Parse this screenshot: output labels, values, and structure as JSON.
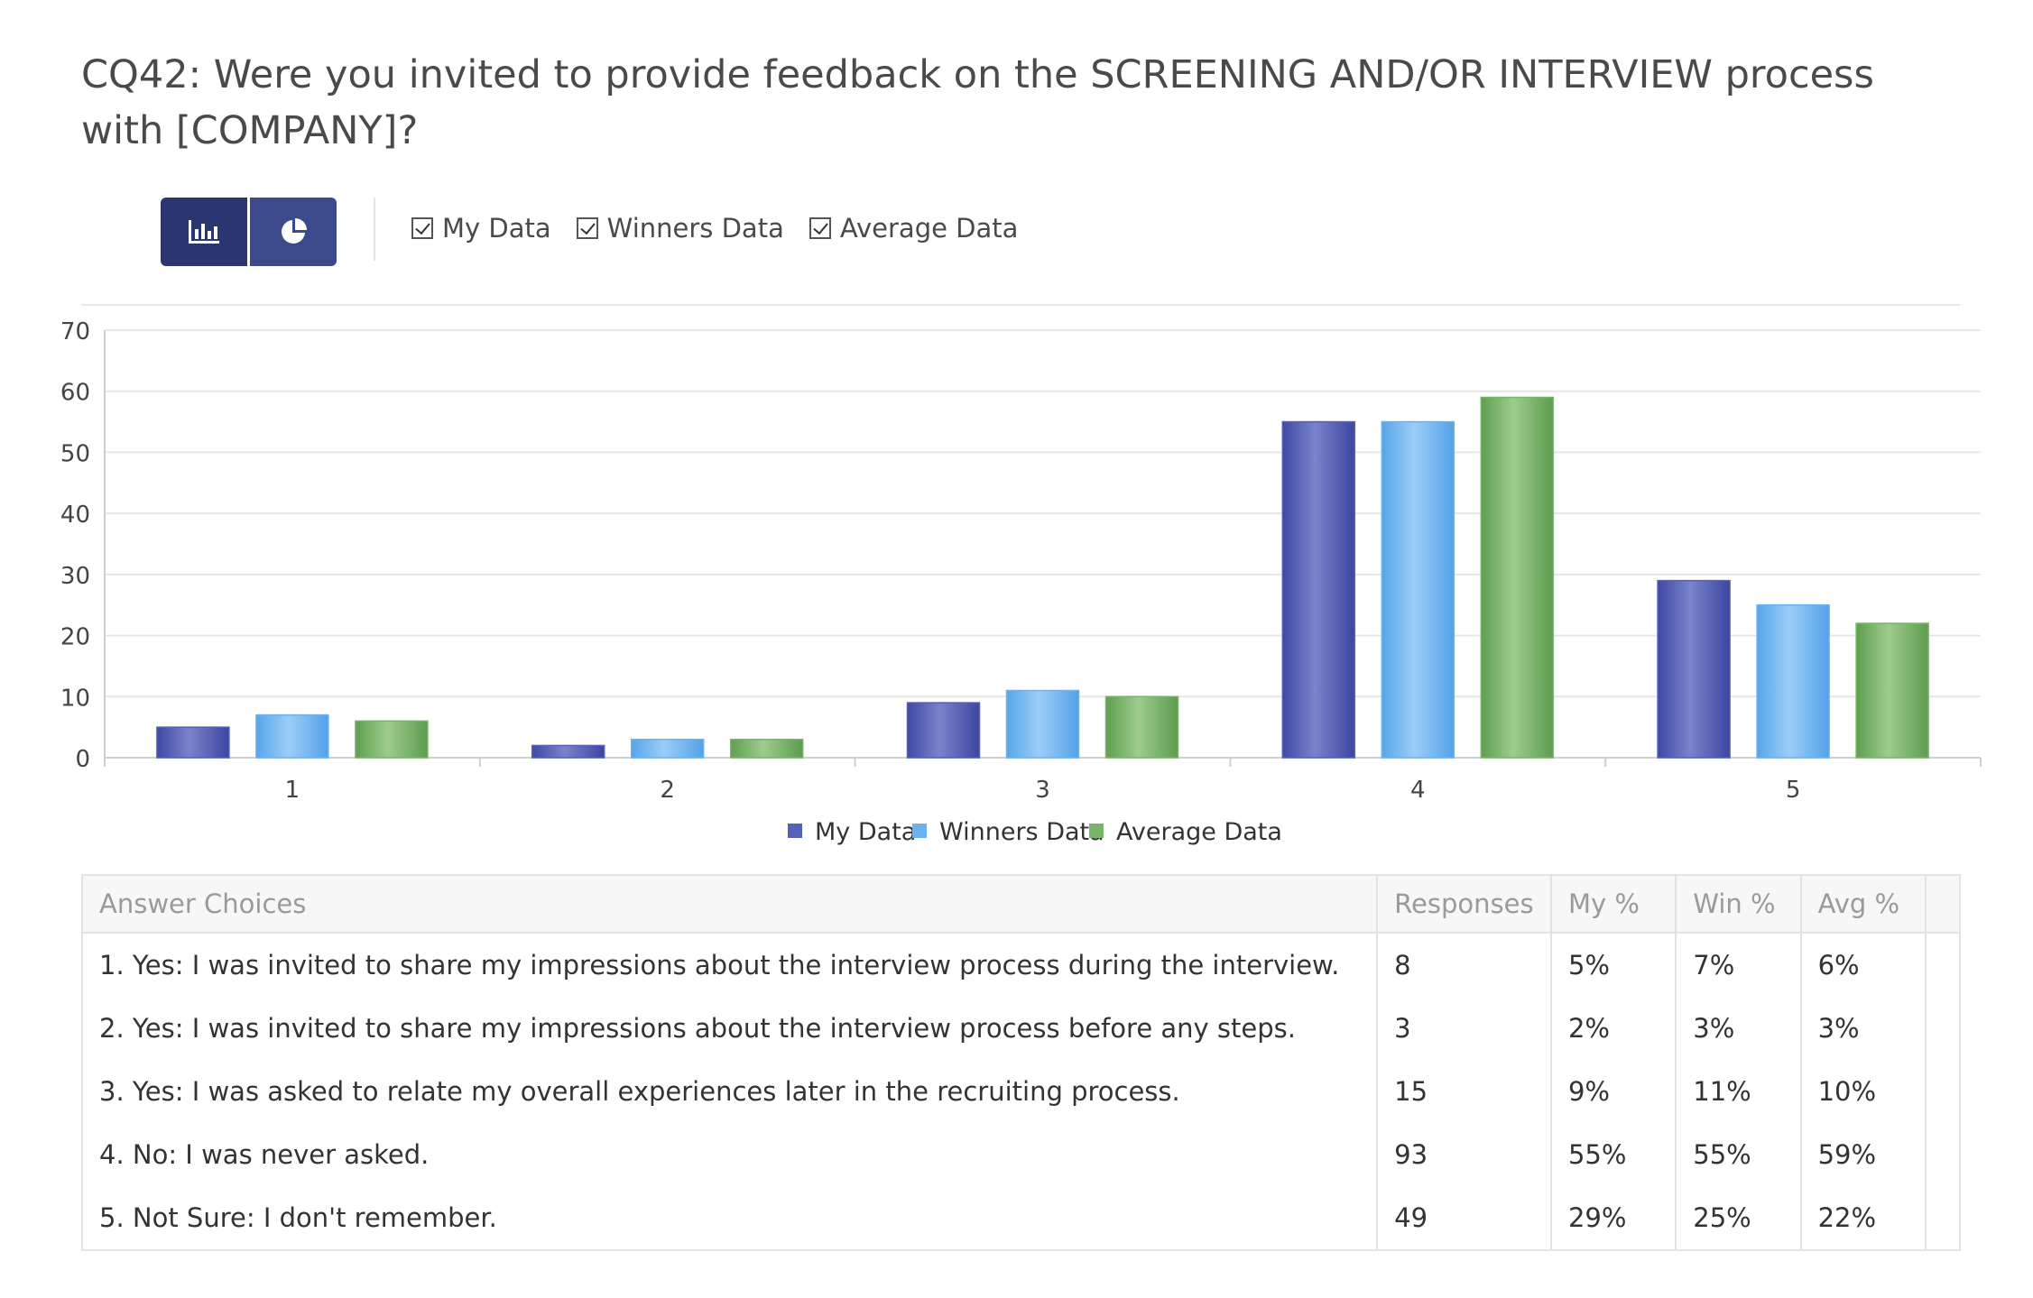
{
  "title": "CQ42: Were you invited to provide feedback on the SCREENING AND/OR INTERVIEW process with [COMPANY]?",
  "toolbar": {
    "views": [
      {
        "icon": "bar-chart-icon",
        "active": true
      },
      {
        "icon": "pie-chart-icon",
        "active": false
      }
    ],
    "toggles": [
      {
        "label": "My Data",
        "checked": true
      },
      {
        "label": "Winners Data",
        "checked": true
      },
      {
        "label": "Average Data",
        "checked": true
      }
    ]
  },
  "chart_data": {
    "type": "bar",
    "categories": [
      "1",
      "2",
      "3",
      "4",
      "5"
    ],
    "series": [
      {
        "name": "My Data",
        "values": [
          5,
          2,
          9,
          55,
          29
        ],
        "color": "#5560b8"
      },
      {
        "name": "Winners Data",
        "values": [
          7,
          3,
          11,
          55,
          25
        ],
        "color": "#6cb2ef"
      },
      {
        "name": "Average Data",
        "values": [
          6,
          3,
          10,
          59,
          22
        ],
        "color": "#78b56a"
      }
    ],
    "ylim": [
      0,
      70
    ],
    "yticks": [
      0,
      10,
      20,
      30,
      40,
      50,
      60,
      70
    ],
    "grid": true,
    "legend": "bottom-center",
    "title": "",
    "xlabel": "",
    "ylabel": ""
  },
  "table": {
    "headers": [
      "Answer Choices",
      "Responses",
      "My %",
      "Win %",
      "Avg %"
    ],
    "rows": [
      [
        "1. Yes: I was invited to share my impressions about the interview process during the interview.",
        "8",
        "5%",
        "7%",
        "6%"
      ],
      [
        "2. Yes: I was invited to share my impressions about the interview process before any steps.",
        "3",
        "2%",
        "3%",
        "3%"
      ],
      [
        "3. Yes: I was asked to relate my overall experiences later in the recruiting process.",
        "15",
        "9%",
        "11%",
        "10%"
      ],
      [
        "4. No: I was never asked.",
        "93",
        "55%",
        "55%",
        "59%"
      ],
      [
        "5. Not Sure: I don't remember.",
        "49",
        "29%",
        "25%",
        "22%"
      ]
    ]
  }
}
